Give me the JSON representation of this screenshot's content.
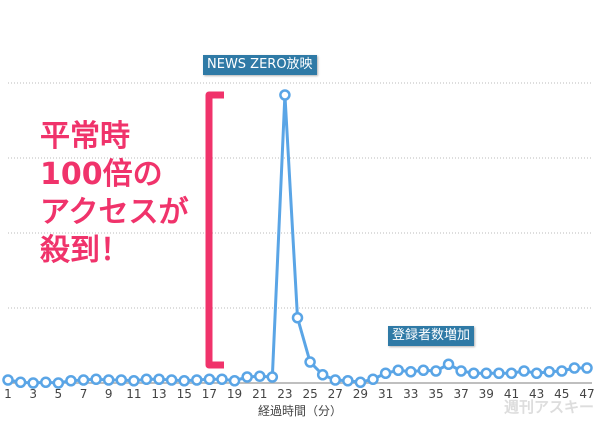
{
  "chart_data": {
    "type": "line",
    "x": [
      1,
      2,
      3,
      4,
      5,
      6,
      7,
      8,
      9,
      10,
      11,
      12,
      13,
      14,
      15,
      16,
      17,
      18,
      19,
      20,
      21,
      22,
      23,
      24,
      25,
      26,
      27,
      28,
      29,
      30,
      31,
      32,
      33,
      34,
      35,
      36,
      37,
      38,
      39,
      40,
      41,
      42,
      43,
      44,
      45,
      46,
      47
    ],
    "values": [
      0.04,
      0.01,
      0,
      0.01,
      0,
      0.03,
      0.04,
      0.05,
      0.04,
      0.04,
      0.03,
      0.05,
      0.05,
      0.04,
      0.03,
      0.04,
      0.05,
      0.05,
      0.03,
      0.08,
      0.09,
      0.08,
      3.84,
      0.87,
      0.28,
      0.11,
      0.04,
      0.03,
      0.01,
      0.05,
      0.13,
      0.17,
      0.15,
      0.17,
      0.16,
      0.25,
      0.16,
      0.13,
      0.13,
      0.13,
      0.13,
      0.16,
      0.13,
      0.15,
      0.16,
      0.2,
      0.2
    ],
    "tick_labels": [
      "1",
      "3",
      "5",
      "7",
      "9",
      "11",
      "13",
      "15",
      "17",
      "19",
      "21",
      "23",
      "25",
      "27",
      "29",
      "31",
      "33",
      "35",
      "37",
      "39",
      "41",
      "43",
      "45",
      "47"
    ],
    "xlabel": "経過時間（分）",
    "ylim": [
      0,
      4
    ],
    "grid": true,
    "line_color": "#5aa5e6",
    "annotations": {
      "peak": "NEWS ZERO放映",
      "rise": "登録者数増加",
      "highlight": "平常時\n100倍の\nアクセスが\n殺到！"
    }
  },
  "watermark": "週刊アスキー",
  "colors": {
    "highlight": "#f0336b",
    "callout": "#2f7aa6"
  }
}
